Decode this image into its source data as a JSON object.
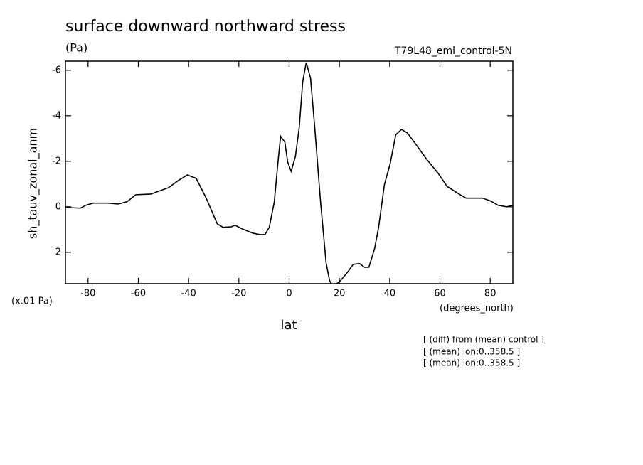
{
  "chart_data": {
    "type": "line",
    "title": "surface downward northward stress",
    "subtitle": "(Pa)",
    "run_label": "T79L48_eml_control-5N",
    "y_label": "sh_tauv_zonal_anm",
    "y_scale_label": "(x.01 Pa)",
    "x_label": "lat",
    "x_unit_label": "(degrees_north)",
    "notes": [
      "[ (diff) from (mean) control ]",
      "[ (mean) lon:0..358.5 ]",
      "[ (mean) lon:0..358.5 ]"
    ],
    "color": "#000000",
    "xlim": [
      -89,
      89
    ],
    "xticks": [
      -80,
      -60,
      -40,
      -20,
      0,
      20,
      40,
      60,
      80
    ],
    "ylim": [
      -6.4,
      3.38
    ],
    "y_inverted": true,
    "yticks": [
      -6,
      -4,
      -2,
      0,
      2
    ],
    "x": [
      -88.9,
      -83,
      -81,
      -78,
      -72,
      -68,
      -64.5,
      -61,
      -55,
      -48,
      -44,
      -40.5,
      -37,
      -33,
      -28.6,
      -26.3,
      -23,
      -21.5,
      -18.7,
      -14.4,
      -11.6,
      -9.6,
      -7.9,
      -5.9,
      -4.5,
      -3.4,
      -1.7,
      -0.6,
      0.8,
      2.5,
      4,
      5.4,
      6.8,
      8.5,
      10.2,
      12.4,
      14.7,
      16.1,
      17.5,
      20.4,
      23.2,
      25.5,
      28,
      30,
      31.7,
      34,
      35.6,
      37.9,
      40.2,
      42.4,
      44.7,
      47,
      49.8,
      54.9,
      59.1,
      62.8,
      67.6,
      70.4,
      76.9,
      80.3,
      83.2,
      86.6,
      88.9
    ],
    "values": [
      0.03,
      0.06,
      -0.06,
      -0.16,
      -0.16,
      -0.12,
      -0.22,
      -0.53,
      -0.56,
      -0.84,
      -1.16,
      -1.4,
      -1.25,
      -0.38,
      0.75,
      0.9,
      0.88,
      0.81,
      0.97,
      1.16,
      1.22,
      1.22,
      0.9,
      -0.22,
      -1.9,
      -3.1,
      -2.84,
      -1.97,
      -1.56,
      -2.22,
      -3.47,
      -5.5,
      -6.34,
      -5.66,
      -3.47,
      -0.34,
      2.47,
      3.25,
      3.5,
      3.25,
      2.88,
      2.53,
      2.5,
      2.66,
      2.66,
      1.84,
      0.9,
      -0.97,
      -1.9,
      -3.16,
      -3.4,
      -3.25,
      -2.84,
      -2.06,
      -1.5,
      -0.9,
      -0.56,
      -0.38,
      -0.38,
      -0.25,
      -0.06,
      0,
      -0.06
    ]
  }
}
